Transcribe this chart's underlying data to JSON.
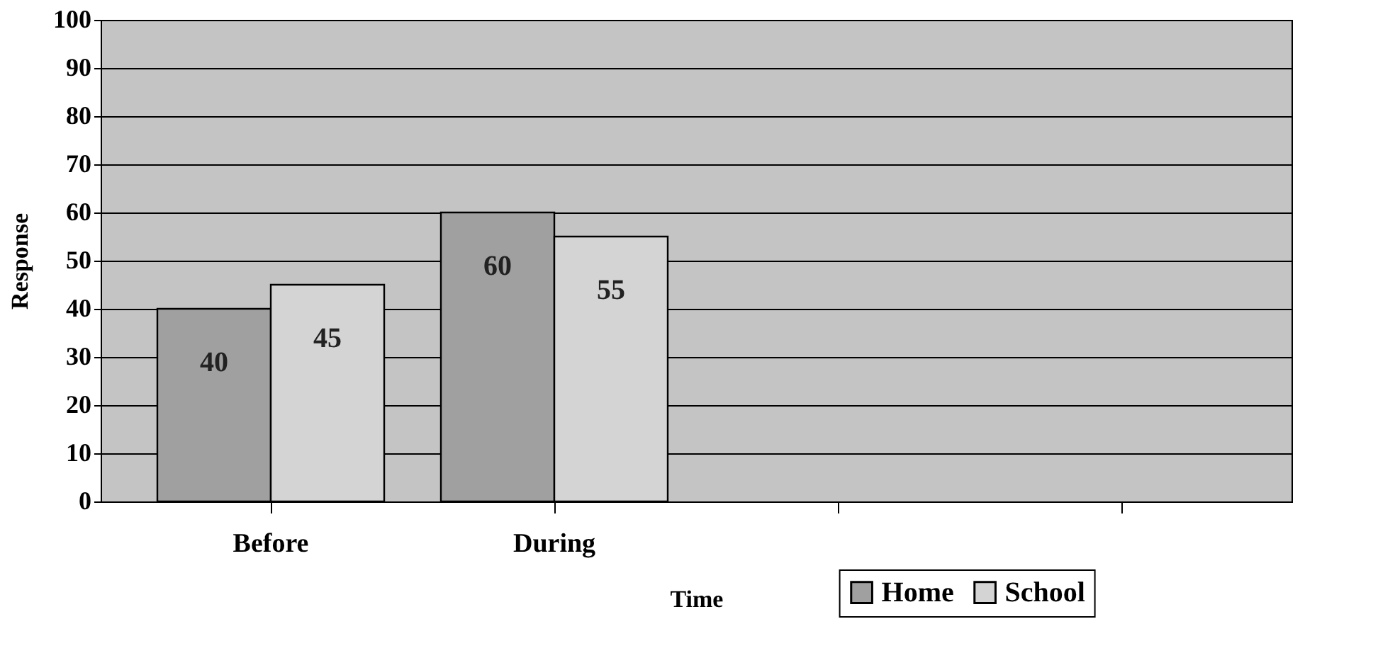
{
  "chart_data": {
    "type": "bar",
    "xlabel": "Time",
    "ylabel": "Response",
    "categories": [
      "Before",
      "During",
      null,
      null
    ],
    "series": [
      {
        "name": "Home",
        "color": "#a0a0a0",
        "values": [
          40,
          60,
          null,
          null
        ]
      },
      {
        "name": "School",
        "color": "#d4d4d4",
        "values": [
          45,
          55,
          null,
          null
        ]
      }
    ],
    "ylim": [
      0,
      100
    ],
    "yticks": [
      0,
      10,
      20,
      30,
      40,
      50,
      60,
      70,
      80,
      90,
      100
    ],
    "grid": "y",
    "legend": "bottom right",
    "data_labels": true
  }
}
